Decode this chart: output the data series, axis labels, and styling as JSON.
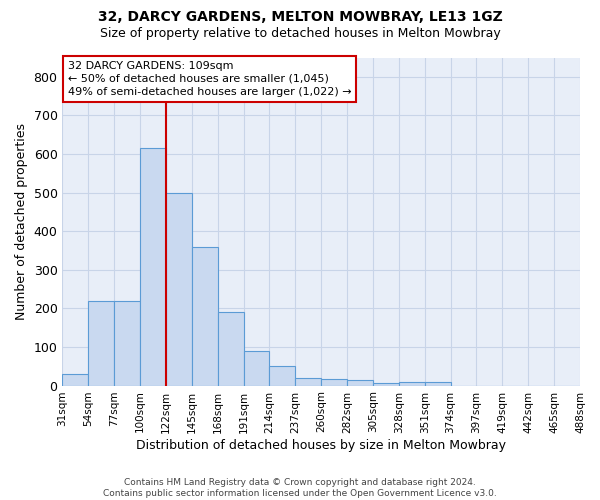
{
  "title1": "32, DARCY GARDENS, MELTON MOWBRAY, LE13 1GZ",
  "title2": "Size of property relative to detached houses in Melton Mowbray",
  "xlabel": "Distribution of detached houses by size in Melton Mowbray",
  "ylabel": "Number of detached properties",
  "bar_values": [
    30,
    220,
    220,
    615,
    500,
    360,
    190,
    90,
    50,
    20,
    18,
    15,
    7,
    10,
    8,
    0,
    0,
    0,
    0,
    0
  ],
  "categories": [
    "31sqm",
    "54sqm",
    "77sqm",
    "100sqm",
    "122sqm",
    "145sqm",
    "168sqm",
    "191sqm",
    "214sqm",
    "237sqm",
    "260sqm",
    "282sqm",
    "305sqm",
    "328sqm",
    "351sqm",
    "374sqm",
    "397sqm",
    "419sqm",
    "442sqm",
    "465sqm",
    "488sqm"
  ],
  "bar_color": "#c9d9f0",
  "bar_edge_color": "#5b9bd5",
  "vline_x": 4.0,
  "annotation_text_line1": "32 DARCY GARDENS: 109sqm",
  "annotation_text_line2": "← 50% of detached houses are smaller (1,045)",
  "annotation_text_line3": "49% of semi-detached houses are larger (1,022) →",
  "annotation_box_color": "#ffffff",
  "annotation_box_edge": "#cc0000",
  "vline_color": "#cc0000",
  "footer1": "Contains HM Land Registry data © Crown copyright and database right 2024.",
  "footer2": "Contains public sector information licensed under the Open Government Licence v3.0.",
  "grid_color": "#c8d4e8",
  "bg_color": "#e8eef8",
  "ylim": [
    0,
    850
  ],
  "yticks": [
    0,
    100,
    200,
    300,
    400,
    500,
    600,
    700,
    800
  ]
}
